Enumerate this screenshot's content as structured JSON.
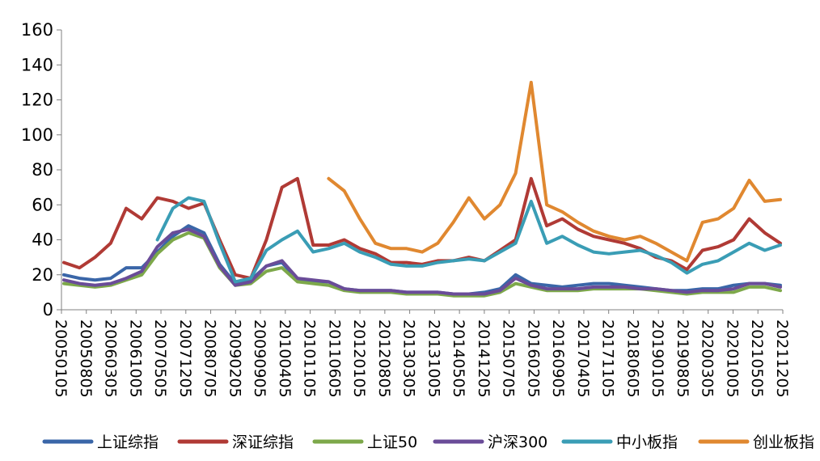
{
  "chart_data": {
    "type": "line",
    "title": "",
    "xlabel": "",
    "ylabel": "",
    "ylim": [
      0,
      160
    ],
    "y_ticks": [
      "0",
      "20",
      "40",
      "60",
      "80",
      "100",
      "120",
      "140",
      "160"
    ],
    "x_ticks": [
      "20050105",
      "20050805",
      "20060305",
      "20061005",
      "20070505",
      "20071205",
      "20080705",
      "20090205",
      "20090905",
      "20100405",
      "20101105",
      "20110605",
      "20120105",
      "20120805",
      "20130305",
      "20131005",
      "20140505",
      "20141205",
      "20150705",
      "20160205",
      "20160905",
      "20170405",
      "20171105",
      "20180605",
      "20190105",
      "20190805",
      "20200305",
      "20201005",
      "20210505",
      "20211205"
    ],
    "grid": false,
    "legend_position": "bottom",
    "series": [
      {
        "name": "上证综指",
        "color": "#3A66A8",
        "values": [
          20,
          18,
          17,
          18,
          24,
          24,
          33,
          42,
          48,
          44,
          26,
          15,
          17,
          25,
          27,
          17,
          16,
          16,
          12,
          11,
          11,
          11,
          10,
          10,
          10,
          9,
          9,
          10,
          12,
          20,
          15,
          14,
          13,
          14,
          15,
          15,
          14,
          13,
          12,
          11,
          11,
          12,
          12,
          14,
          15,
          15,
          14
        ]
      },
      {
        "name": "深证综指",
        "color": "#B03A35",
        "values": [
          27,
          24,
          30,
          38,
          58,
          52,
          64,
          62,
          58,
          61,
          40,
          20,
          18,
          40,
          70,
          75,
          37,
          37,
          40,
          35,
          32,
          27,
          27,
          26,
          28,
          28,
          30,
          28,
          34,
          40,
          75,
          48,
          52,
          46,
          42,
          40,
          38,
          35,
          30,
          28,
          23,
          34,
          36,
          40,
          52,
          44,
          38
        ]
      },
      {
        "name": "上证50",
        "color": "#7DA84A",
        "values": [
          15,
          14,
          13,
          14,
          17,
          20,
          32,
          40,
          44,
          41,
          24,
          14,
          15,
          22,
          24,
          16,
          15,
          14,
          11,
          10,
          10,
          10,
          9,
          9,
          9,
          8,
          8,
          8,
          10,
          15,
          13,
          11,
          11,
          11,
          12,
          12,
          12,
          12,
          11,
          10,
          9,
          10,
          10,
          10,
          13,
          13,
          11
        ]
      },
      {
        "name": "沪深300",
        "color": "#6A4C98",
        "values": [
          17,
          15,
          14,
          15,
          18,
          22,
          36,
          44,
          46,
          42,
          25,
          14,
          16,
          25,
          28,
          18,
          17,
          16,
          12,
          11,
          11,
          11,
          10,
          10,
          10,
          9,
          9,
          9,
          11,
          18,
          14,
          12,
          12,
          12,
          13,
          13,
          13,
          12,
          12,
          11,
          10,
          11,
          11,
          12,
          15,
          15,
          13
        ]
      },
      {
        "name": "中小板指",
        "color": "#3A9DB5",
        "values": [
          null,
          null,
          null,
          null,
          null,
          null,
          40,
          58,
          64,
          62,
          38,
          16,
          18,
          34,
          40,
          45,
          33,
          35,
          38,
          33,
          30,
          26,
          25,
          25,
          27,
          28,
          29,
          28,
          33,
          38,
          62,
          38,
          42,
          37,
          33,
          32,
          33,
          34,
          31,
          27,
          21,
          26,
          28,
          33,
          38,
          34,
          37
        ]
      },
      {
        "name": "创业板指",
        "color": "#E08830",
        "values": [
          null,
          null,
          null,
          null,
          null,
          null,
          null,
          null,
          null,
          null,
          null,
          null,
          null,
          null,
          null,
          null,
          null,
          75,
          68,
          52,
          38,
          35,
          35,
          33,
          38,
          50,
          64,
          52,
          60,
          78,
          130,
          60,
          56,
          50,
          45,
          42,
          40,
          42,
          38,
          33,
          28,
          50,
          52,
          58,
          74,
          62,
          63
        ]
      }
    ]
  }
}
